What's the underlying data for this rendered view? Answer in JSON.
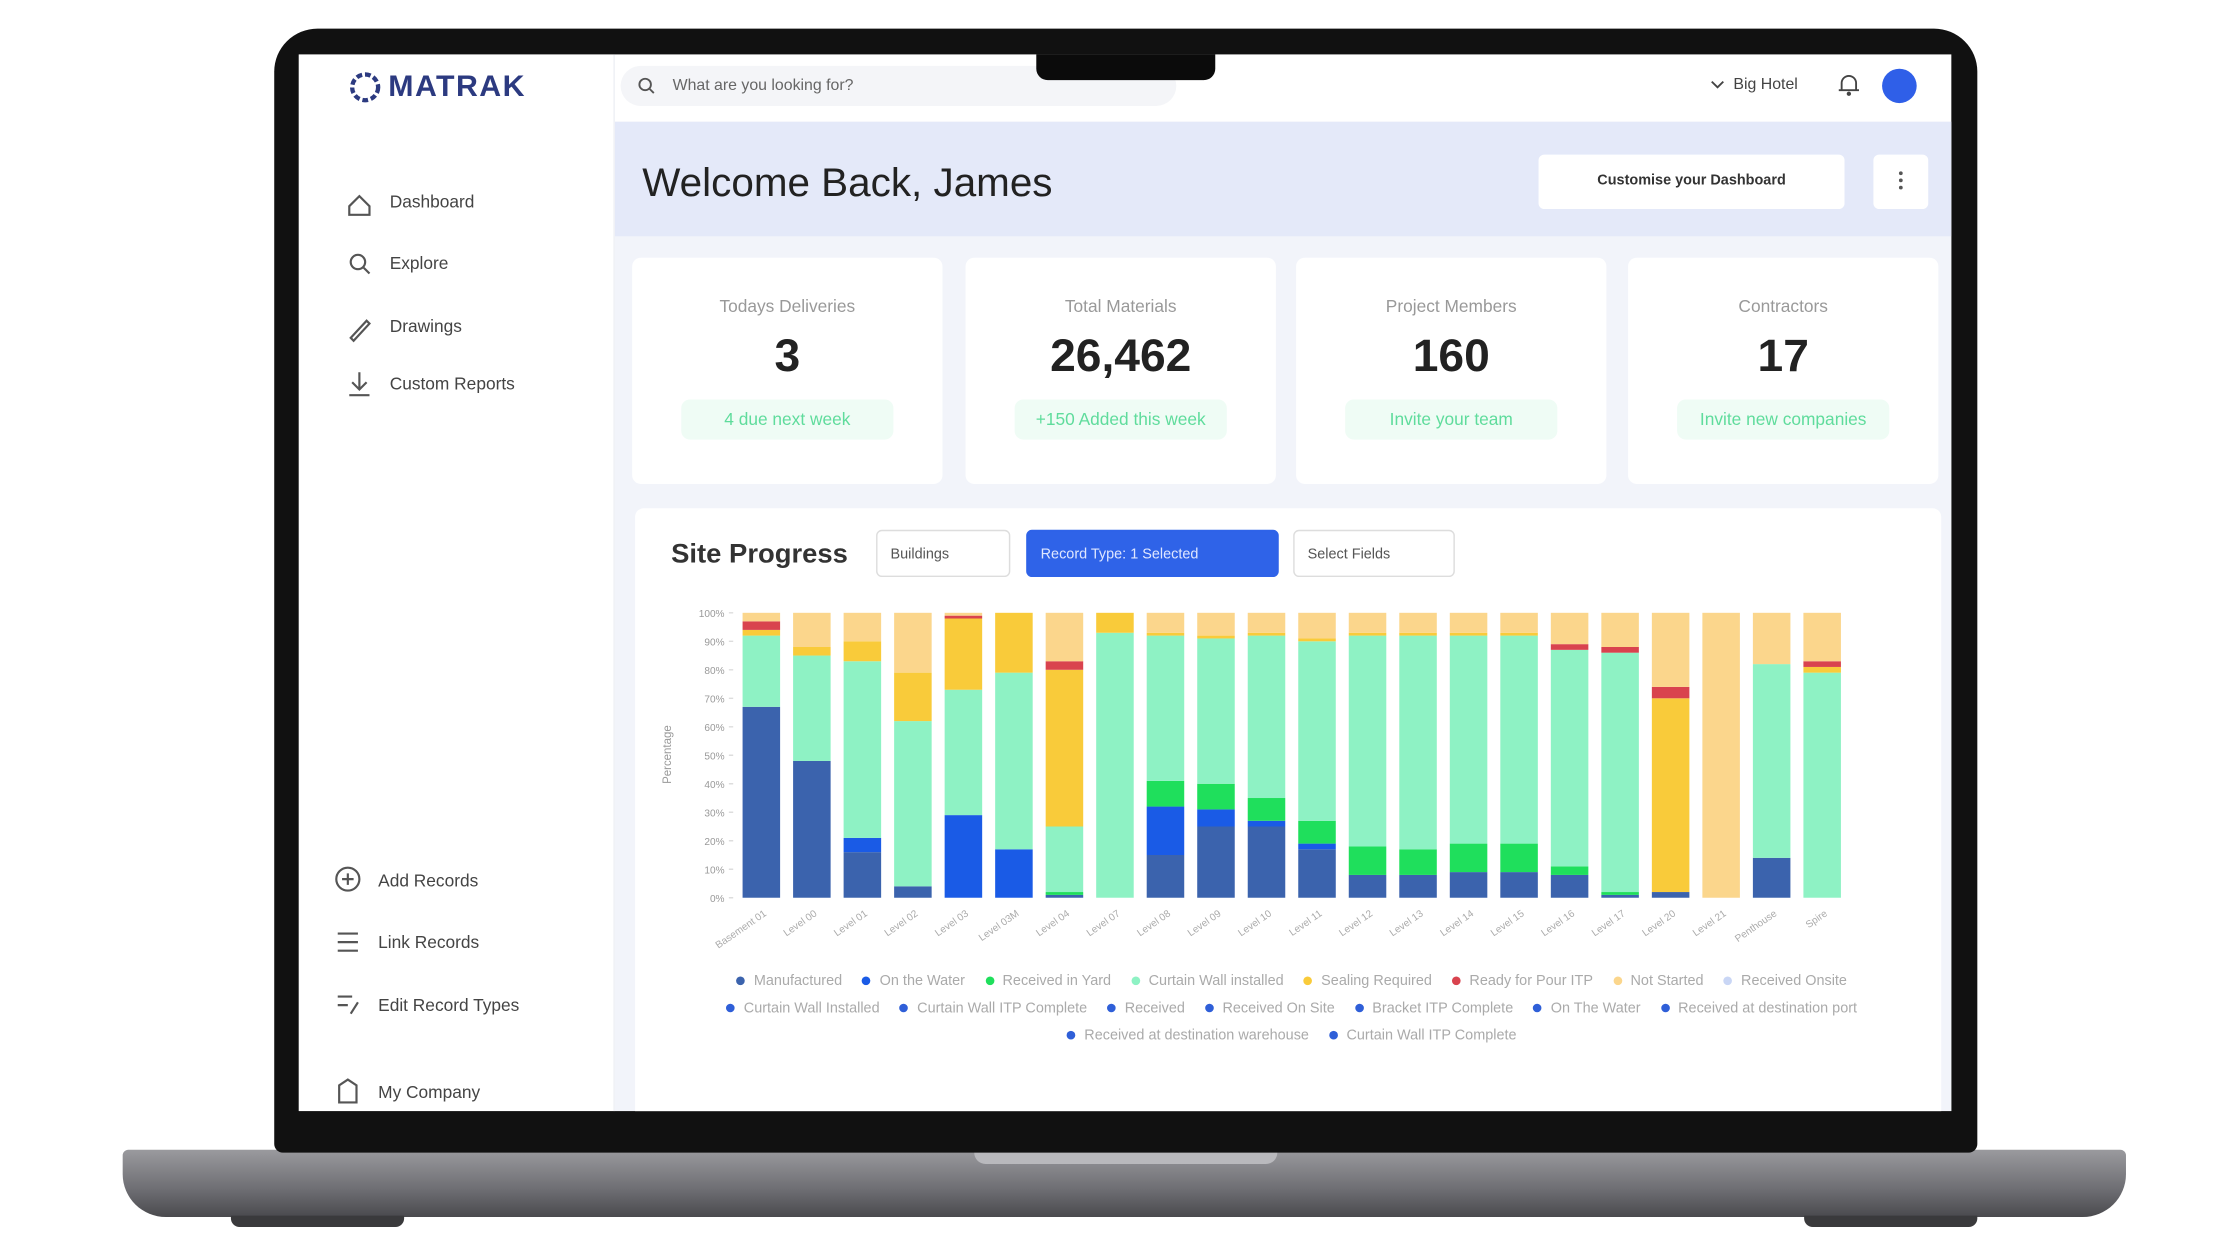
{
  "header": {
    "logo": "MATRAK",
    "search_placeholder": "What are you looking for?",
    "project": "Big Hotel"
  },
  "sidebar": {
    "nav": [
      "Dashboard",
      "Explore",
      "Drawings",
      "Custom Reports"
    ],
    "actions": [
      "Add Records",
      "Link Records",
      "Edit Record Types",
      "My Company"
    ]
  },
  "welcome": {
    "title": "Welcome Back, James",
    "customise_button": "Customise your Dashboard"
  },
  "stats": [
    {
      "label": "Todays Deliveries",
      "value": "3",
      "note": "4 due next week"
    },
    {
      "label": "Total Materials",
      "value": "26,462",
      "note": "+150 Added this week"
    },
    {
      "label": "Project Members",
      "value": "160",
      "note": "Invite your team"
    },
    {
      "label": "Contractors",
      "value": "17",
      "note": "Invite new companies"
    }
  ],
  "site_progress": {
    "title": "Site Progress",
    "filters": [
      "Buildings",
      "Record Type: 1 Selected",
      "Select Fields"
    ],
    "chart": {
      "type": "bar",
      "stacked": true,
      "y_label": "Percentage",
      "categories": [
        "Basement 01",
        "Level 00",
        "Level 01",
        "Level 02",
        "Level 03",
        "Level 03M",
        "Level 04",
        "Level 07",
        "Level 08",
        "Level 09",
        "Level 10",
        "Level 11",
        "Level 12",
        "Level 13",
        "Level 14",
        "Level 15",
        "Level 16",
        "Level 17",
        "Level 20",
        "Level 21",
        "Penthouse",
        "Spire"
      ],
      "series": [
        {
          "name": "Manufactured",
          "color": "#3b63ad",
          "values": [
            67,
            48,
            16,
            4,
            0,
            0,
            1,
            0,
            15,
            25,
            25,
            17,
            8,
            8,
            9,
            9,
            8,
            1,
            2,
            0,
            14,
            0
          ]
        },
        {
          "name": "On the Water",
          "color": "#1a5be6",
          "values": [
            0,
            0,
            5,
            0,
            29,
            17,
            0,
            0,
            17,
            6,
            2,
            2,
            0,
            0,
            0,
            0,
            0,
            0,
            0,
            0,
            0,
            0
          ]
        },
        {
          "name": "Received in Yard",
          "color": "#1fdf5c",
          "values": [
            0,
            0,
            0,
            0,
            0,
            0,
            1,
            0,
            9,
            9,
            8,
            8,
            10,
            9,
            10,
            10,
            3,
            1,
            0,
            0,
            0,
            0
          ]
        },
        {
          "name": "Curtain Wall installed",
          "color": "#8ef2c4",
          "values": [
            25,
            37,
            62,
            58,
            44,
            62,
            23,
            93,
            51,
            51,
            57,
            63,
            74,
            75,
            73,
            73,
            76,
            84,
            0,
            0,
            68,
            79
          ]
        },
        {
          "name": "Sealing Required",
          "color": "#f9cb3a",
          "values": [
            2,
            3,
            7,
            17,
            25,
            21,
            55,
            7,
            1,
            1,
            1,
            1,
            1,
            1,
            1,
            1,
            0,
            0,
            68,
            0,
            0,
            2
          ]
        },
        {
          "name": "Ready for Pour ITP",
          "color": "#d9434e",
          "values": [
            3,
            0,
            0,
            0,
            1,
            0,
            3,
            0,
            0,
            0,
            0,
            0,
            0,
            0,
            0,
            0,
            2,
            2,
            4,
            0,
            0,
            2
          ]
        },
        {
          "name": "Not Started",
          "color": "#fbd68c",
          "values": [
            3,
            12,
            10,
            21,
            1,
            0,
            17,
            0,
            7,
            8,
            7,
            9,
            7,
            7,
            7,
            7,
            11,
            12,
            26,
            100,
            18,
            17
          ]
        }
      ],
      "legend_extra": [
        {
          "name": "Received Onsite",
          "color": "#c9d6f5"
        },
        {
          "name": "Curtain Wall Installed",
          "color": "#2f5fd8"
        },
        {
          "name": "Curtain Wall ITP Complete",
          "color": "#2f5fd8"
        },
        {
          "name": "Received",
          "color": "#2f5fd8"
        },
        {
          "name": "Received On Site",
          "color": "#2f5fd8"
        },
        {
          "name": "Bracket ITP Complete",
          "color": "#2f5fd8"
        },
        {
          "name": "On The Water",
          "color": "#2f5fd8"
        },
        {
          "name": "Received at destination port",
          "color": "#2f5fd8"
        },
        {
          "name": "Received at destination warehouse",
          "color": "#2f5fd8"
        },
        {
          "name": "Curtain Wall ITP Complete",
          "color": "#2f5fd8"
        }
      ],
      "ylim": [
        0,
        100
      ],
      "yticks": [
        {
          "value": 0,
          "label": "0%"
        },
        {
          "value": 10,
          "label": "10%"
        },
        {
          "value": 20,
          "label": "20%"
        },
        {
          "value": 30,
          "label": "30%"
        },
        {
          "value": 40,
          "label": "40%"
        },
        {
          "value": 50,
          "label": "50%"
        },
        {
          "value": 60,
          "label": "60%"
        },
        {
          "value": 70,
          "label": "70%"
        },
        {
          "value": 80,
          "label": "80%"
        },
        {
          "value": 90,
          "label": "90%"
        },
        {
          "value": 100,
          "label": "100%"
        }
      ]
    }
  }
}
